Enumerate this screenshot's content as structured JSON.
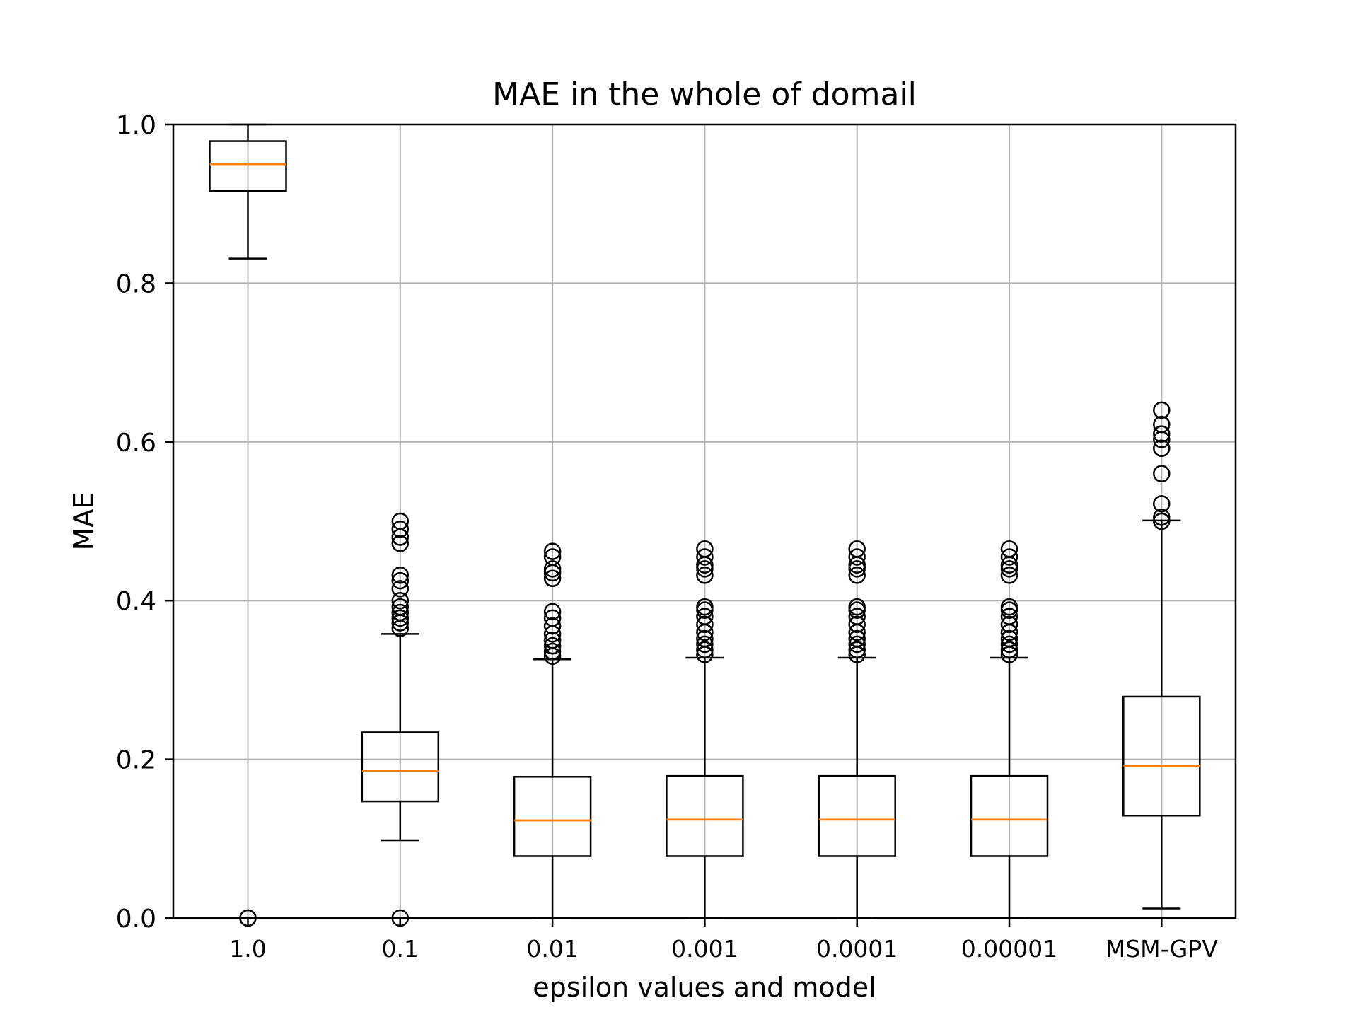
{
  "chart_data": {
    "type": "boxplot",
    "title": "MAE in the whole of domail",
    "xlabel": "epsilon values and model",
    "ylabel": "MAE",
    "ylim": [
      0,
      1
    ],
    "yticks": [
      "0.0",
      "0.2",
      "0.4",
      "0.6",
      "0.8",
      "1.0"
    ],
    "grid": true,
    "categories": [
      "1.0",
      "0.1",
      "0.01",
      "0.001",
      "0.0001",
      "0.00001",
      "MSM-GPV"
    ],
    "boxes": [
      {
        "q1": 0.916,
        "median": 0.95,
        "q3": 0.979,
        "whisker_low": 0.831,
        "whisker_high": 1.0,
        "outliers": [
          0.0,
          0.0
        ]
      },
      {
        "q1": 0.147,
        "median": 0.185,
        "q3": 0.234,
        "whisker_low": 0.098,
        "whisker_high": 0.358,
        "outliers": [
          0.0,
          0.365,
          0.372,
          0.378,
          0.385,
          0.392,
          0.4,
          0.415,
          0.425,
          0.432,
          0.472,
          0.48,
          0.49,
          0.5
        ]
      },
      {
        "q1": 0.078,
        "median": 0.123,
        "q3": 0.178,
        "whisker_low": 0.0,
        "whisker_high": 0.326,
        "outliers": [
          0.33,
          0.336,
          0.343,
          0.35,
          0.358,
          0.368,
          0.378,
          0.386,
          0.428,
          0.435,
          0.44,
          0.455,
          0.462
        ]
      },
      {
        "q1": 0.078,
        "median": 0.124,
        "q3": 0.179,
        "whisker_low": 0.0,
        "whisker_high": 0.328,
        "outliers": [
          0.332,
          0.338,
          0.345,
          0.352,
          0.36,
          0.37,
          0.38,
          0.388,
          0.392,
          0.432,
          0.44,
          0.445,
          0.455,
          0.465
        ]
      },
      {
        "q1": 0.078,
        "median": 0.124,
        "q3": 0.179,
        "whisker_low": 0.0,
        "whisker_high": 0.328,
        "outliers": [
          0.332,
          0.338,
          0.345,
          0.352,
          0.36,
          0.37,
          0.38,
          0.388,
          0.392,
          0.432,
          0.44,
          0.445,
          0.455,
          0.465
        ]
      },
      {
        "q1": 0.078,
        "median": 0.124,
        "q3": 0.179,
        "whisker_low": 0.0,
        "whisker_high": 0.328,
        "outliers": [
          0.332,
          0.338,
          0.345,
          0.352,
          0.36,
          0.37,
          0.38,
          0.388,
          0.392,
          0.432,
          0.44,
          0.445,
          0.455,
          0.465
        ]
      },
      {
        "q1": 0.129,
        "median": 0.192,
        "q3": 0.279,
        "whisker_low": 0.012,
        "whisker_high": 0.501,
        "outliers": [
          0.5,
          0.505,
          0.522,
          0.56,
          0.592,
          0.603,
          0.61,
          0.622,
          0.64
        ]
      }
    ],
    "colors": {
      "box": "#000000",
      "median": "#ff7f0e",
      "grid": "#b0b0b0"
    }
  }
}
